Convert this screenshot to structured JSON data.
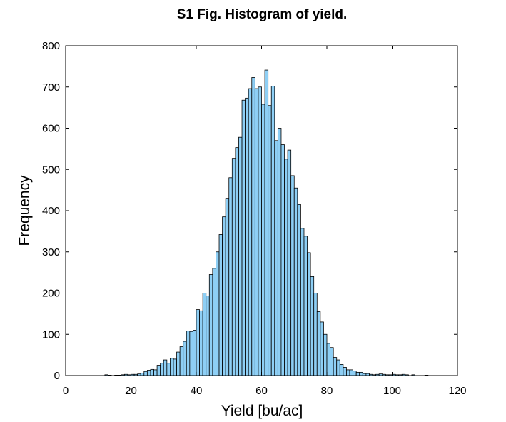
{
  "chart_data": {
    "type": "bar",
    "title": "S1 Fig. Histogram of yield.",
    "xlabel": "Yield [bu/ac]",
    "ylabel": "Frequency",
    "xlim": [
      0,
      120
    ],
    "ylim": [
      0,
      800
    ],
    "xticks": [
      "0",
      "20",
      "40",
      "60",
      "80",
      "100",
      "120"
    ],
    "yticks": [
      "0",
      "100",
      "200",
      "300",
      "400",
      "500",
      "600",
      "700",
      "800"
    ],
    "grid": false,
    "bin_width": 1,
    "bar_color": "#8ecff5",
    "edge_color": "#000000",
    "bins": [
      {
        "x": 12,
        "y": 2
      },
      {
        "x": 13,
        "y": 1
      },
      {
        "x": 15,
        "y": 1
      },
      {
        "x": 16,
        "y": 1
      },
      {
        "x": 17,
        "y": 2
      },
      {
        "x": 18,
        "y": 3
      },
      {
        "x": 19,
        "y": 2
      },
      {
        "x": 20,
        "y": 3
      },
      {
        "x": 21,
        "y": 3
      },
      {
        "x": 22,
        "y": 4
      },
      {
        "x": 23,
        "y": 6
      },
      {
        "x": 24,
        "y": 10
      },
      {
        "x": 25,
        "y": 13
      },
      {
        "x": 26,
        "y": 15
      },
      {
        "x": 27,
        "y": 14
      },
      {
        "x": 28,
        "y": 25
      },
      {
        "x": 29,
        "y": 30
      },
      {
        "x": 30,
        "y": 38
      },
      {
        "x": 31,
        "y": 30
      },
      {
        "x": 32,
        "y": 42
      },
      {
        "x": 33,
        "y": 40
      },
      {
        "x": 34,
        "y": 57
      },
      {
        "x": 35,
        "y": 70
      },
      {
        "x": 36,
        "y": 83
      },
      {
        "x": 37,
        "y": 108
      },
      {
        "x": 38,
        "y": 107
      },
      {
        "x": 39,
        "y": 110
      },
      {
        "x": 40,
        "y": 160
      },
      {
        "x": 41,
        "y": 157
      },
      {
        "x": 42,
        "y": 200
      },
      {
        "x": 43,
        "y": 193
      },
      {
        "x": 44,
        "y": 245
      },
      {
        "x": 45,
        "y": 260
      },
      {
        "x": 46,
        "y": 300
      },
      {
        "x": 47,
        "y": 342
      },
      {
        "x": 48,
        "y": 385
      },
      {
        "x": 49,
        "y": 430
      },
      {
        "x": 50,
        "y": 480
      },
      {
        "x": 51,
        "y": 527
      },
      {
        "x": 52,
        "y": 553
      },
      {
        "x": 53,
        "y": 578
      },
      {
        "x": 54,
        "y": 668
      },
      {
        "x": 55,
        "y": 673
      },
      {
        "x": 56,
        "y": 696
      },
      {
        "x": 57,
        "y": 723
      },
      {
        "x": 58,
        "y": 696
      },
      {
        "x": 59,
        "y": 700
      },
      {
        "x": 60,
        "y": 658
      },
      {
        "x": 61,
        "y": 741
      },
      {
        "x": 62,
        "y": 655
      },
      {
        "x": 63,
        "y": 702
      },
      {
        "x": 64,
        "y": 570
      },
      {
        "x": 65,
        "y": 600
      },
      {
        "x": 66,
        "y": 560
      },
      {
        "x": 67,
        "y": 525
      },
      {
        "x": 68,
        "y": 547
      },
      {
        "x": 69,
        "y": 485
      },
      {
        "x": 70,
        "y": 455
      },
      {
        "x": 71,
        "y": 415
      },
      {
        "x": 72,
        "y": 357
      },
      {
        "x": 73,
        "y": 338
      },
      {
        "x": 74,
        "y": 298
      },
      {
        "x": 75,
        "y": 240
      },
      {
        "x": 76,
        "y": 200
      },
      {
        "x": 77,
        "y": 155
      },
      {
        "x": 78,
        "y": 130
      },
      {
        "x": 79,
        "y": 100
      },
      {
        "x": 80,
        "y": 78
      },
      {
        "x": 81,
        "y": 68
      },
      {
        "x": 82,
        "y": 44
      },
      {
        "x": 83,
        "y": 38
      },
      {
        "x": 84,
        "y": 27
      },
      {
        "x": 85,
        "y": 20
      },
      {
        "x": 86,
        "y": 14
      },
      {
        "x": 87,
        "y": 14
      },
      {
        "x": 88,
        "y": 11
      },
      {
        "x": 89,
        "y": 8
      },
      {
        "x": 90,
        "y": 8
      },
      {
        "x": 91,
        "y": 5
      },
      {
        "x": 92,
        "y": 5
      },
      {
        "x": 93,
        "y": 3
      },
      {
        "x": 94,
        "y": 2
      },
      {
        "x": 95,
        "y": 3
      },
      {
        "x": 96,
        "y": 4
      },
      {
        "x": 97,
        "y": 3
      },
      {
        "x": 98,
        "y": 2
      },
      {
        "x": 99,
        "y": 2
      },
      {
        "x": 100,
        "y": 3
      },
      {
        "x": 101,
        "y": 2
      },
      {
        "x": 102,
        "y": 2
      },
      {
        "x": 103,
        "y": 3
      },
      {
        "x": 104,
        "y": 2
      },
      {
        "x": 106,
        "y": 2
      },
      {
        "x": 110,
        "y": 1
      }
    ]
  }
}
